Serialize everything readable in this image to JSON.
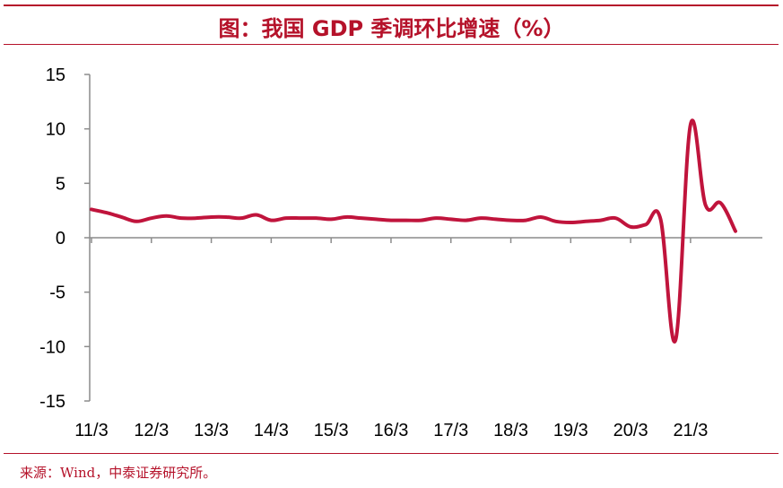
{
  "title": "图：我国 GDP 季调环比增速（%）",
  "source": "来源：Wind，中泰证券研究所。",
  "colors": {
    "accent": "#b5122a",
    "line": "#c0143c",
    "axis": "#8c8c8c"
  },
  "chart_data": {
    "type": "line",
    "title": "图：我国 GDP 季调环比增速（%）",
    "xlabel": "",
    "ylabel": "",
    "ylim": [
      -15,
      15
    ],
    "yticks": [
      15,
      10,
      5,
      0,
      -5,
      -10,
      -15
    ],
    "xticks": [
      "11/3",
      "12/3",
      "13/3",
      "14/3",
      "15/3",
      "16/3",
      "17/3",
      "18/3",
      "19/3",
      "20/3",
      "21/3"
    ],
    "grid": false,
    "legend": "none",
    "series": [
      {
        "values": [
          {
            "x": "11/3",
            "y": 2.6
          },
          {
            "x": "11/6",
            "y": 2.3
          },
          {
            "x": "11/9",
            "y": 1.9
          },
          {
            "x": "11/12",
            "y": 1.5
          },
          {
            "x": "12/3",
            "y": 1.8
          },
          {
            "x": "12/6",
            "y": 2.0
          },
          {
            "x": "12/9",
            "y": 1.8
          },
          {
            "x": "12/12",
            "y": 1.8
          },
          {
            "x": "13/3",
            "y": 1.9
          },
          {
            "x": "13/6",
            "y": 1.9
          },
          {
            "x": "13/9",
            "y": 1.8
          },
          {
            "x": "13/12",
            "y": 2.1
          },
          {
            "x": "14/3",
            "y": 1.6
          },
          {
            "x": "14/6",
            "y": 1.8
          },
          {
            "x": "14/9",
            "y": 1.8
          },
          {
            "x": "14/12",
            "y": 1.8
          },
          {
            "x": "15/3",
            "y": 1.7
          },
          {
            "x": "15/6",
            "y": 1.9
          },
          {
            "x": "15/9",
            "y": 1.8
          },
          {
            "x": "15/12",
            "y": 1.7
          },
          {
            "x": "16/3",
            "y": 1.6
          },
          {
            "x": "16/6",
            "y": 1.6
          },
          {
            "x": "16/9",
            "y": 1.6
          },
          {
            "x": "16/12",
            "y": 1.8
          },
          {
            "x": "17/3",
            "y": 1.7
          },
          {
            "x": "17/6",
            "y": 1.6
          },
          {
            "x": "17/9",
            "y": 1.8
          },
          {
            "x": "17/12",
            "y": 1.7
          },
          {
            "x": "18/3",
            "y": 1.6
          },
          {
            "x": "18/6",
            "y": 1.6
          },
          {
            "x": "18/9",
            "y": 1.9
          },
          {
            "x": "18/12",
            "y": 1.5
          },
          {
            "x": "19/3",
            "y": 1.4
          },
          {
            "x": "19/6",
            "y": 1.5
          },
          {
            "x": "19/9",
            "y": 1.6
          },
          {
            "x": "19/12",
            "y": 1.8
          },
          {
            "x": "20/3",
            "y": 1.0
          },
          {
            "x": "20/6",
            "y": 1.2
          },
          {
            "x": "20/9",
            "y": 1.7
          },
          {
            "x": "20/12",
            "y": -9.4
          },
          {
            "x": "21/3",
            "y": 10.4
          },
          {
            "x": "21/6",
            "y": 3.0
          },
          {
            "x": "21/9",
            "y": 3.2
          },
          {
            "x": "21/12",
            "y": 0.6
          }
        ]
      }
    ]
  }
}
